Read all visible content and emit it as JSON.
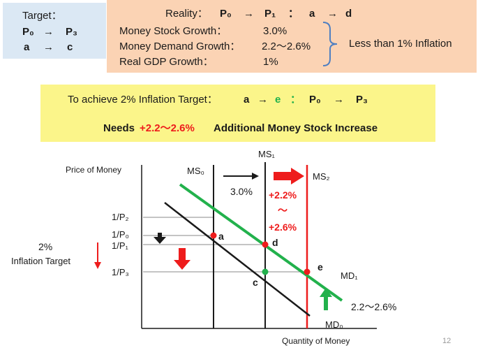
{
  "target": {
    "title": "Target：",
    "line1": {
      "from": "P₀",
      "arrow": "→",
      "to": "P₃"
    },
    "line2": {
      "from": "a",
      "arrow": "→",
      "to": "c"
    }
  },
  "reality": {
    "title": "Reality：",
    "p_from": "P₀",
    "p_arrow": "→",
    "p_to": "P₁",
    "sep": "：",
    "pt_from": "a",
    "pt_arrow": "→",
    "pt_to": "d",
    "rows": [
      {
        "label": "Money Stock Growth：",
        "value": "3.0%"
      },
      {
        "label": "Money Demand Growth：",
        "value": "2.2〜2.6%"
      },
      {
        "label": "Real GDP Growth：",
        "value": "1%"
      }
    ],
    "summary": "Less than 1% Inflation"
  },
  "goal": {
    "line1_text": "To achieve 2% Inflation Target：",
    "line1_a": "a",
    "line1_arrow1": "→",
    "line1_e": "e",
    "line1_colon": "：",
    "line1_p0": "P₀",
    "line1_arrow2": "→",
    "line1_p3": "P₃",
    "needs": "Needs",
    "needs_value": "+2.2〜2.6%",
    "needs_rest": "Additional Money Stock Increase"
  },
  "diagram": {
    "ylabel": "Price of Money",
    "xlabel": "Quantity of Money",
    "ms0": "MS₀",
    "ms1": "MS₁",
    "ms2": "MS₂",
    "md0": "MD₀",
    "md1": "MD₁",
    "ms_shift": "3.0%",
    "ms2_shift_top": "+2.2%",
    "ms2_shift_tilde": "〜",
    "ms2_shift_bottom": "+2.6%",
    "md_shift": "2.2〜2.6%",
    "price_levels": [
      "1/P₂",
      "1/P₀",
      "1/P₁",
      "1/P₃"
    ],
    "points": [
      "a",
      "d",
      "c",
      "e"
    ],
    "inflation_target_pct": "2%",
    "inflation_target_label": "Inflation Target"
  },
  "slide_number": "12",
  "colors": {
    "red": "#ee1c1c",
    "green": "#22b14c",
    "blue_brace": "#4f7fc1"
  }
}
